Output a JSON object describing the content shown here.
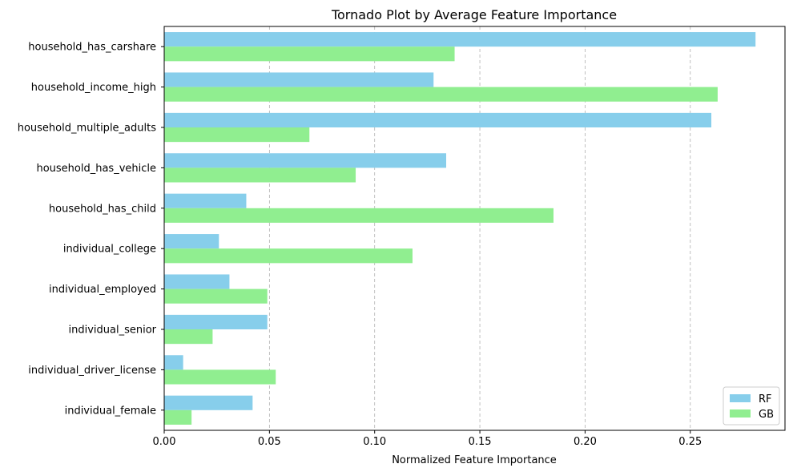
{
  "chart_data": {
    "type": "bar",
    "orientation": "horizontal",
    "title": "Tornado Plot by Average Feature Importance",
    "xlabel": "Normalized Feature Importance",
    "ylabel": "",
    "xlim": [
      0.0,
      0.295
    ],
    "x_ticks": [
      0.0,
      0.05,
      0.1,
      0.15,
      0.2,
      0.25
    ],
    "x_tick_labels": [
      "0.00",
      "0.05",
      "0.10",
      "0.15",
      "0.20",
      "0.25"
    ],
    "grid": "vertical dashed",
    "legend_position": "bottom-right",
    "categories": [
      "household_has_carshare",
      "household_income_high",
      "household_multiple_adults",
      "household_has_vehicle",
      "household_has_child",
      "individual_college",
      "individual_employed",
      "individual_senior",
      "individual_driver_license",
      "individual_female"
    ],
    "series": [
      {
        "name": "RF",
        "color": "#87ceeb",
        "values": [
          0.281,
          0.128,
          0.26,
          0.134,
          0.039,
          0.026,
          0.031,
          0.049,
          0.009,
          0.042
        ]
      },
      {
        "name": "GB",
        "color": "#90ee90",
        "values": [
          0.138,
          0.263,
          0.069,
          0.091,
          0.185,
          0.118,
          0.049,
          0.023,
          0.053,
          0.013
        ]
      }
    ]
  }
}
